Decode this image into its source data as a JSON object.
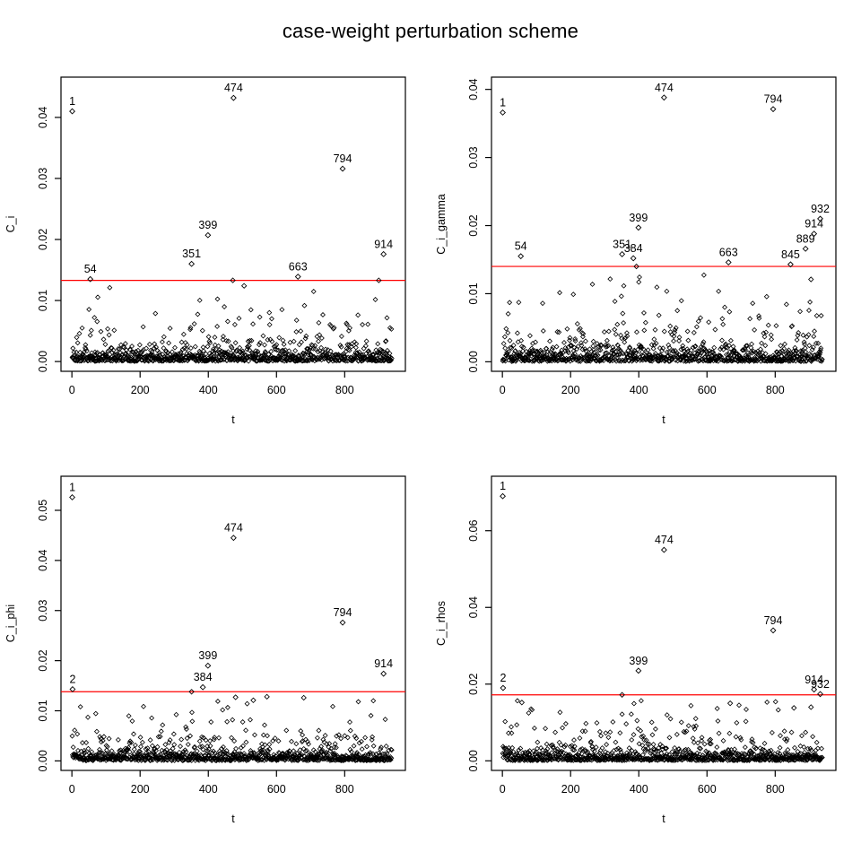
{
  "title": "case-weight perturbation scheme",
  "colors": {
    "threshold_line": "#FF0000",
    "marker_stroke": "#000000",
    "axis": "#000000",
    "background": "#ffffff"
  },
  "marker": "open-diamond",
  "chart_data": [
    {
      "id": "C_i",
      "type": "scatter",
      "title": "",
      "xlabel": "t",
      "ylabel": "C_i",
      "x_ticks": [
        0,
        200,
        400,
        600,
        800
      ],
      "x_range": [
        -32,
        978
      ],
      "y_ticks": [
        0,
        0.01,
        0.02,
        0.03,
        0.04
      ],
      "y_tick_labels": [
        "0.00",
        "0.01",
        "0.02",
        "0.03",
        "0.04"
      ],
      "y_range": [
        -0.0016,
        0.0466
      ],
      "threshold": 0.0133,
      "labeled_points": [
        {
          "label": "1",
          "x": 1,
          "y": 0.041
        },
        {
          "label": "474",
          "x": 474,
          "y": 0.0432
        },
        {
          "label": "794",
          "x": 794,
          "y": 0.0316
        },
        {
          "label": "399",
          "x": 399,
          "y": 0.0207
        },
        {
          "label": "914",
          "x": 914,
          "y": 0.0176
        },
        {
          "label": "351",
          "x": 351,
          "y": 0.016
        },
        {
          "label": "663",
          "x": 663,
          "y": 0.0139
        },
        {
          "label": "54",
          "x": 54,
          "y": 0.0135
        }
      ],
      "unlabeled_points": [
        {
          "x": 472,
          "y": 0.0133
        },
        {
          "x": 505,
          "y": 0.0124
        },
        {
          "x": 900,
          "y": 0.0133
        }
      ],
      "background": {
        "n": 938,
        "seed": 11,
        "band_mean": 0.0008,
        "mid_mean": 0.0026,
        "tail_min": 0.004,
        "tail_mean": 0.0028,
        "mid_frac": 0.17,
        "tail_frac": 0.03,
        "ref_threshold": 0.0135
      }
    },
    {
      "id": "C_i_gamma",
      "type": "scatter",
      "title": "",
      "xlabel": "t",
      "ylabel": "C_i_gamma",
      "x_ticks": [
        0,
        200,
        400,
        600,
        800
      ],
      "x_range": [
        -32,
        978
      ],
      "y_ticks": [
        0,
        0.01,
        0.02,
        0.03,
        0.04
      ],
      "y_tick_labels": [
        "0.00",
        "0.01",
        "0.02",
        "0.03",
        "0.04"
      ],
      "y_range": [
        -0.0014,
        0.0418
      ],
      "threshold": 0.014,
      "labeled_points": [
        {
          "label": "474",
          "x": 474,
          "y": 0.0388
        },
        {
          "label": "794",
          "x": 794,
          "y": 0.0371
        },
        {
          "label": "1",
          "x": 1,
          "y": 0.0366
        },
        {
          "label": "932",
          "x": 932,
          "y": 0.021
        },
        {
          "label": "399",
          "x": 399,
          "y": 0.0197
        },
        {
          "label": "914",
          "x": 914,
          "y": 0.0188
        },
        {
          "label": "889",
          "x": 889,
          "y": 0.0166
        },
        {
          "label": "351",
          "x": 351,
          "y": 0.0158
        },
        {
          "label": "54",
          "x": 54,
          "y": 0.0155
        },
        {
          "label": "384",
          "x": 384,
          "y": 0.0152
        },
        {
          "label": "663",
          "x": 663,
          "y": 0.0146
        },
        {
          "label": "845",
          "x": 845,
          "y": 0.0143
        }
      ],
      "unlabeled_points": [
        {
          "x": 393,
          "y": 0.014
        },
        {
          "x": 905,
          "y": 0.0121
        }
      ],
      "background": {
        "n": 938,
        "seed": 23,
        "band_mean": 0.00082,
        "mid_mean": 0.0027,
        "tail_min": 0.004,
        "tail_mean": 0.0028,
        "mid_frac": 0.18,
        "tail_frac": 0.03,
        "ref_threshold": 0.0135
      }
    },
    {
      "id": "C_i_phi",
      "type": "scatter",
      "title": "",
      "xlabel": "t",
      "ylabel": "C_i_phi",
      "x_ticks": [
        0,
        200,
        400,
        600,
        800
      ],
      "x_range": [
        -32,
        978
      ],
      "y_ticks": [
        0,
        0.01,
        0.02,
        0.03,
        0.04,
        0.05
      ],
      "y_tick_labels": [
        "0.00",
        "0.01",
        "0.02",
        "0.03",
        "0.04",
        "0.05"
      ],
      "y_range": [
        -0.0019,
        0.0568
      ],
      "threshold": 0.0138,
      "labeled_points": [
        {
          "label": "1",
          "x": 1,
          "y": 0.0526
        },
        {
          "label": "474",
          "x": 474,
          "y": 0.0445
        },
        {
          "label": "794",
          "x": 794,
          "y": 0.0276
        },
        {
          "label": "399",
          "x": 399,
          "y": 0.019
        },
        {
          "label": "914",
          "x": 914,
          "y": 0.0174
        },
        {
          "label": "384",
          "x": 384,
          "y": 0.0147
        },
        {
          "label": "2",
          "x": 2,
          "y": 0.0143
        }
      ],
      "unlabeled_points": [
        {
          "x": 351,
          "y": 0.0138
        },
        {
          "x": 480,
          "y": 0.0127
        },
        {
          "x": 532,
          "y": 0.0121
        },
        {
          "x": 572,
          "y": 0.0128
        },
        {
          "x": 680,
          "y": 0.0126
        }
      ],
      "background": {
        "n": 938,
        "seed": 37,
        "band_mean": 0.00082,
        "mid_mean": 0.0027,
        "tail_min": 0.004,
        "tail_mean": 0.0028,
        "mid_frac": 0.17,
        "tail_frac": 0.03,
        "ref_threshold": 0.0135
      }
    },
    {
      "id": "C_i_rhos",
      "type": "scatter",
      "title": "",
      "xlabel": "t",
      "ylabel": "C_i_rhos",
      "x_ticks": [
        0,
        200,
        400,
        600,
        800
      ],
      "x_range": [
        -32,
        978
      ],
      "y_ticks": [
        0,
        0.02,
        0.04,
        0.06
      ],
      "y_tick_labels": [
        "0.00",
        "0.02",
        "0.04",
        "0.06"
      ],
      "y_range": [
        -0.0025,
        0.0742
      ],
      "threshold": 0.0172,
      "labeled_points": [
        {
          "label": "1",
          "x": 1,
          "y": 0.069
        },
        {
          "label": "474",
          "x": 474,
          "y": 0.055
        },
        {
          "label": "794",
          "x": 794,
          "y": 0.034
        },
        {
          "label": "399",
          "x": 399,
          "y": 0.0235
        },
        {
          "label": "2",
          "x": 2,
          "y": 0.019
        },
        {
          "label": "914",
          "x": 914,
          "y": 0.0186
        },
        {
          "label": "932",
          "x": 932,
          "y": 0.0174
        }
      ],
      "unlabeled_points": [
        {
          "x": 351,
          "y": 0.0172
        },
        {
          "x": 57,
          "y": 0.0152
        },
        {
          "x": 668,
          "y": 0.015
        },
        {
          "x": 905,
          "y": 0.014
        },
        {
          "x": 855,
          "y": 0.0138
        }
      ],
      "background": {
        "n": 938,
        "seed": 53,
        "band_mean": 0.00085,
        "mid_mean": 0.0028,
        "tail_min": 0.005,
        "tail_mean": 0.0035,
        "mid_frac": 0.17,
        "tail_frac": 0.03,
        "ref_threshold": 0.0135
      }
    }
  ]
}
